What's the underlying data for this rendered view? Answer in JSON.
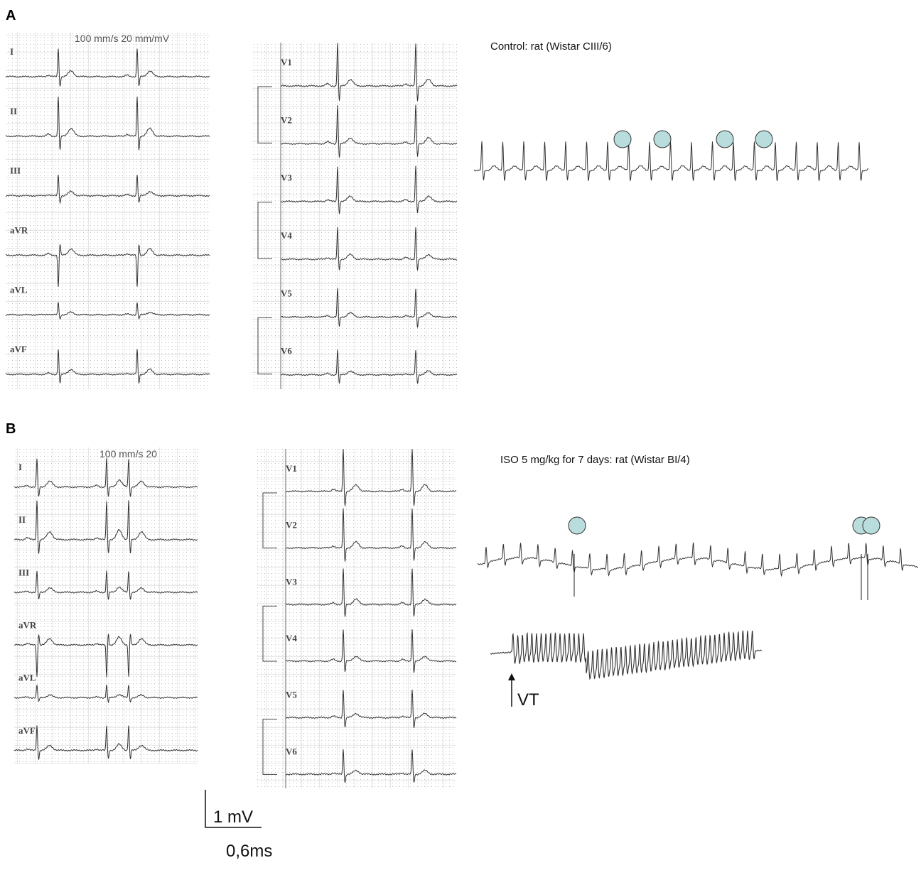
{
  "panels": [
    {
      "label": "A",
      "limb_header": "100 mm/s  20 mm/mV",
      "limb_leads": [
        "I",
        "II",
        "III",
        "aVR",
        "aVL",
        "aVF"
      ],
      "chest_leads": [
        "V1",
        "V2",
        "V3",
        "V4",
        "V5",
        "V6"
      ],
      "caption": "Control: rat (Wistar CIII/6)"
    },
    {
      "label": "B",
      "limb_header": "100 mm/s  20",
      "limb_leads": [
        "I",
        "II",
        "III",
        "aVR",
        "aVL",
        "aVF"
      ],
      "chest_leads": [
        "V1",
        "V2",
        "V3",
        "V4",
        "V5",
        "V6"
      ],
      "caption": "ISO  5 mg/kg for 7 days: rat (Wistar BI/4)",
      "arrhythmia_label": "VT"
    }
  ],
  "scale_bar": {
    "amplitude": "1 mV",
    "time": "0,6ms"
  }
}
